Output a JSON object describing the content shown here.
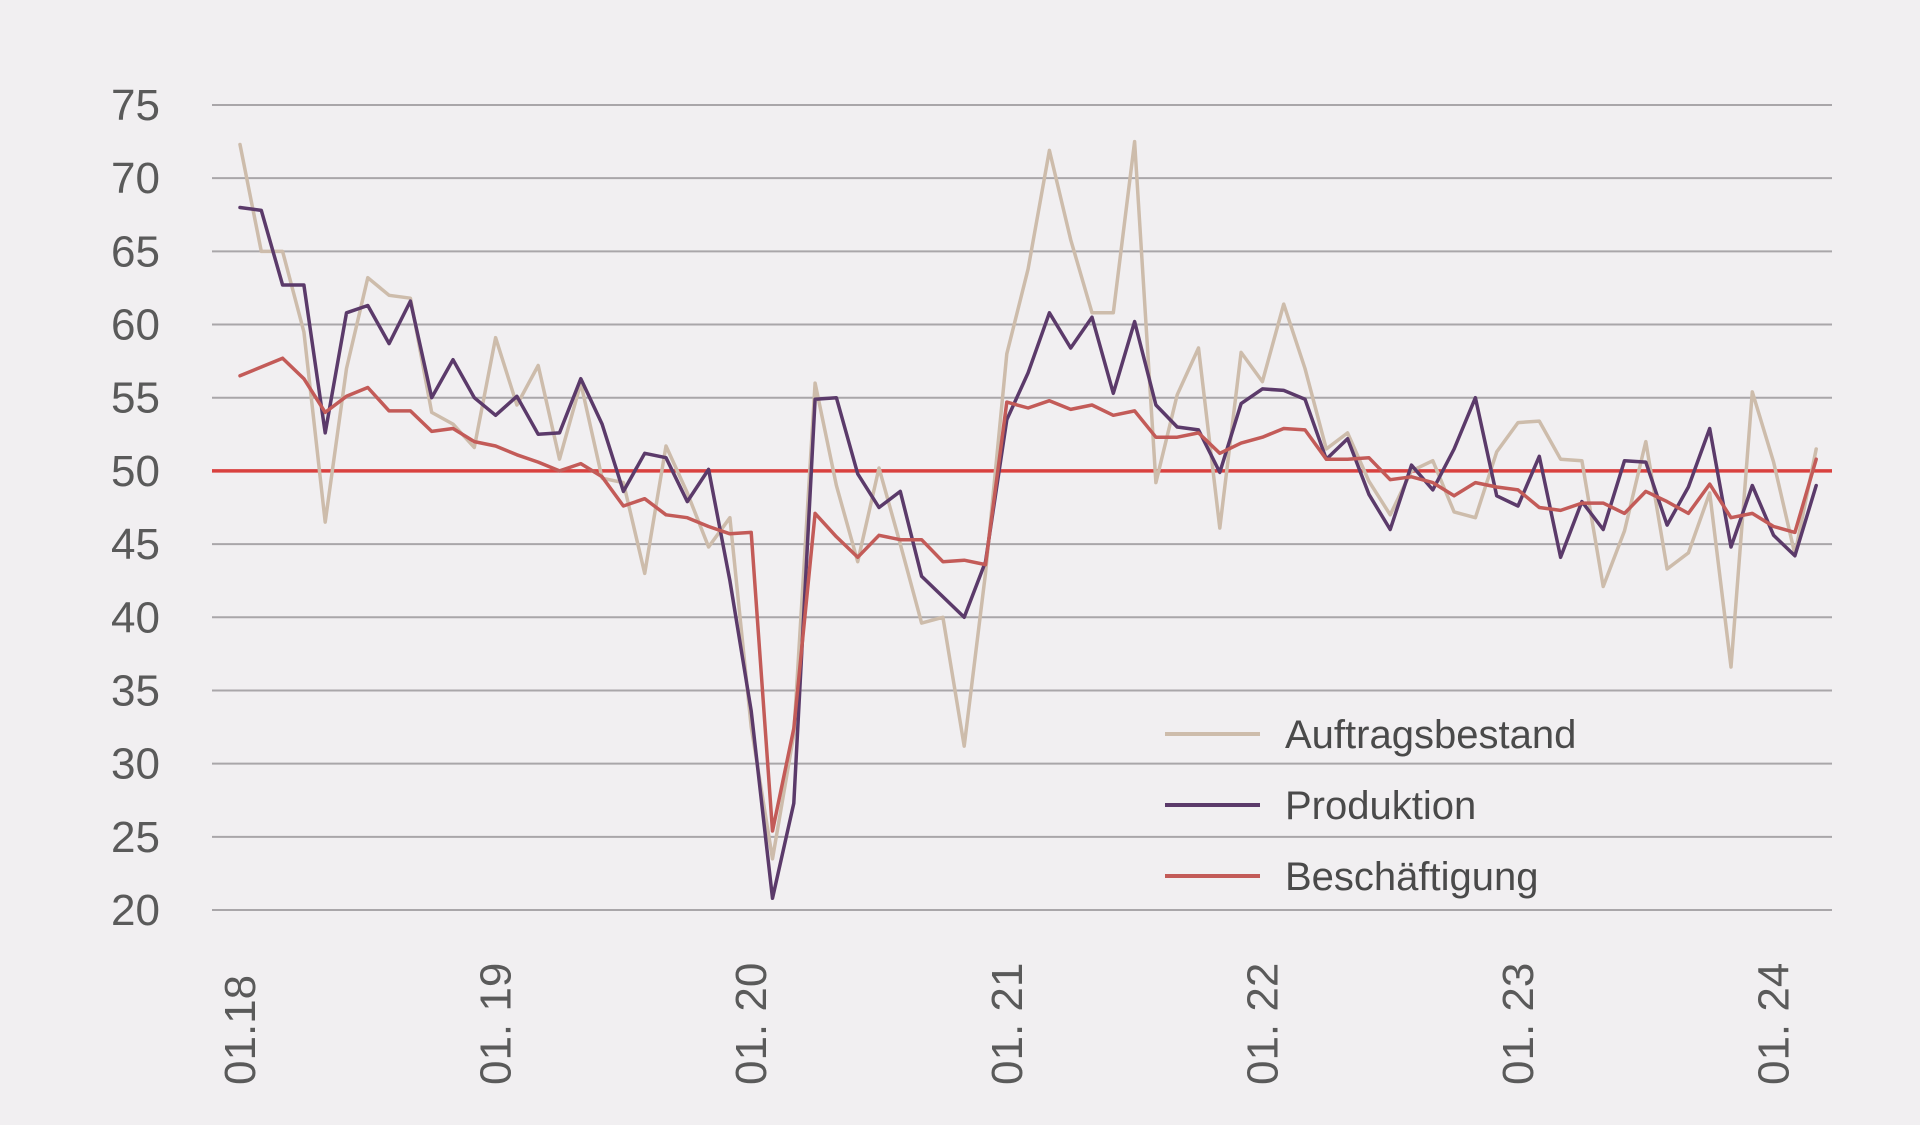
{
  "chart_data": {
    "type": "line",
    "title": "",
    "xlabel": "",
    "ylabel": "",
    "ylim": [
      20,
      75
    ],
    "yticks": [
      20,
      25,
      30,
      35,
      40,
      45,
      50,
      55,
      60,
      65,
      70,
      75
    ],
    "grid": true,
    "reference_line": {
      "value": 50,
      "color": "#d9413f"
    },
    "x_ticks": [
      {
        "label": "01.18",
        "month": 0
      },
      {
        "label": "01. 19",
        "month": 12
      },
      {
        "label": "01. 20",
        "month": 24
      },
      {
        "label": "01. 21",
        "month": 36
      },
      {
        "label": "01. 22",
        "month": 48
      },
      {
        "label": "01. 23",
        "month": 60
      },
      {
        "label": "01. 24",
        "month": 72
      }
    ],
    "legend_position": "bottom-right",
    "x_start_month": "01.18",
    "series": [
      {
        "name": "Auftragsbestand",
        "color": "#cdbcab",
        "values": [
          72.3,
          65.0,
          65.0,
          59.5,
          46.5,
          57.0,
          63.2,
          62.0,
          61.8,
          54.0,
          53.2,
          51.6,
          59.1,
          54.5,
          57.2,
          50.8,
          56.0,
          49.5,
          49.2,
          43.0,
          51.7,
          48.5,
          44.8,
          46.8,
          32.5,
          23.5,
          32.0,
          56.0,
          49.0,
          43.8,
          50.2,
          45.0,
          39.6,
          40.0,
          31.2,
          43.0,
          58.0,
          63.8,
          71.9,
          65.8,
          60.8,
          60.8,
          72.5,
          49.2,
          55.2,
          58.4,
          46.1,
          58.1,
          56.1,
          61.4,
          57.0,
          51.5,
          52.6,
          49.3,
          47.0,
          50.0,
          50.7,
          47.2,
          46.8,
          51.3,
          53.3,
          53.4,
          50.8,
          50.7,
          42.1,
          45.9,
          52.0,
          43.3,
          44.4,
          48.5,
          36.6,
          55.4,
          50.6,
          44.3,
          51.5
        ]
      },
      {
        "name": "Produktion",
        "color": "#5b3a6a",
        "values": [
          68.0,
          67.8,
          62.7,
          62.7,
          52.6,
          60.8,
          61.3,
          58.7,
          61.6,
          55.0,
          57.6,
          55.0,
          53.8,
          55.1,
          52.5,
          52.6,
          56.3,
          53.2,
          48.6,
          51.2,
          50.9,
          47.9,
          50.1,
          42.5,
          33.6,
          20.8,
          27.3,
          54.9,
          55.0,
          49.8,
          47.5,
          48.6,
          42.8,
          41.4,
          40.0,
          43.8,
          53.5,
          56.7,
          60.8,
          58.4,
          60.5,
          55.3,
          60.2,
          54.5,
          53.0,
          52.8,
          49.9,
          54.6,
          55.6,
          55.5,
          54.9,
          50.8,
          52.2,
          48.4,
          46.0,
          50.4,
          48.7,
          51.5,
          55.0,
          48.3,
          47.6,
          51.0,
          44.1,
          47.9,
          46.0,
          50.7,
          50.6,
          46.3,
          48.9,
          52.9,
          44.8,
          49.0,
          45.6,
          44.2,
          49.0
        ]
      },
      {
        "name": "Beschäftigung",
        "color": "#c35b58",
        "values": [
          56.5,
          57.1,
          57.7,
          56.3,
          54.0,
          55.1,
          55.7,
          54.1,
          54.1,
          52.7,
          52.9,
          52.0,
          51.7,
          51.1,
          50.6,
          50.0,
          50.5,
          49.6,
          47.6,
          48.1,
          47.0,
          46.8,
          46.2,
          45.7,
          45.8,
          25.4,
          32.4,
          47.1,
          45.5,
          44.1,
          45.6,
          45.3,
          45.3,
          43.8,
          43.9,
          43.6,
          54.7,
          54.3,
          54.8,
          54.2,
          54.5,
          53.8,
          54.1,
          52.3,
          52.3,
          52.6,
          51.2,
          51.9,
          52.3,
          52.9,
          52.8,
          50.8,
          50.8,
          50.9,
          49.4,
          49.6,
          49.2,
          48.3,
          49.2,
          48.9,
          48.7,
          47.5,
          47.3,
          47.8,
          47.8,
          47.1,
          48.6,
          47.9,
          47.1,
          49.1,
          46.8,
          47.1,
          46.2,
          45.8,
          50.8
        ]
      }
    ]
  }
}
